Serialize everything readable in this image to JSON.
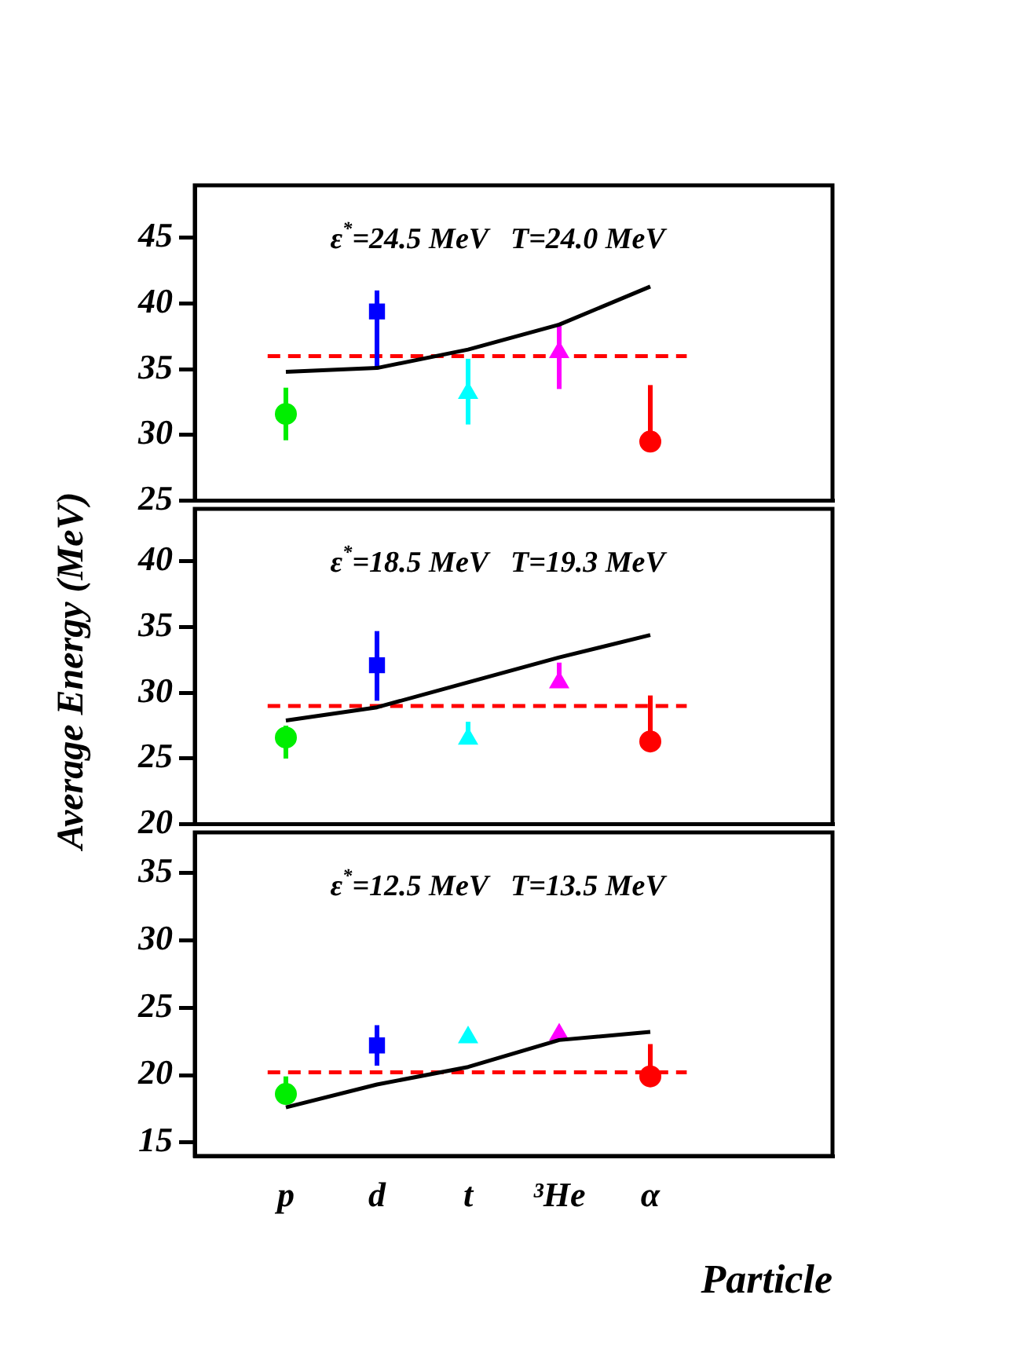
{
  "chart_data": [
    {
      "type": "line",
      "categories": [
        null,
        "p",
        "d",
        "t",
        "³He",
        "α",
        null,
        null
      ],
      "ylim": [
        25,
        49
      ],
      "yticks": [
        25,
        30,
        35,
        40,
        45
      ],
      "tick_labels": "y",
      "grid": false,
      "legend": false,
      "annotations": [
        "ε$^{*}$=24.5 MeV   T=24.0 MeV"
      ],
      "ref_lines": [
        {
          "axis": "y",
          "value": 36.0,
          "color": "#ff0000",
          "line_style": "dashed"
        }
      ],
      "series": [
        {
          "type": "line",
          "color": "#000000",
          "marker": "none",
          "line_style": "solid",
          "values": [
            null,
            34.8,
            35.1,
            36.5,
            38.4,
            41.3,
            null,
            null
          ]
        },
        {
          "type": "scatter",
          "color": "#00ee00",
          "marker": "circle",
          "x": [
            "p"
          ],
          "values": [
            31.6
          ],
          "errors": [
            [
              29.6,
              33.6
            ]
          ]
        },
        {
          "type": "scatter",
          "color": "#0000ff",
          "marker": "square",
          "x": [
            "d"
          ],
          "values": [
            39.4
          ],
          "errors": [
            [
              35.0,
              41.0
            ]
          ]
        },
        {
          "type": "scatter",
          "color": "#00ffff",
          "marker": "triangle",
          "x": [
            "t"
          ],
          "values": [
            33.2
          ],
          "errors": [
            [
              30.8,
              35.8
            ]
          ]
        },
        {
          "type": "scatter",
          "color": "#ff00ff",
          "marker": "triangle",
          "x": [
            "³He"
          ],
          "values": [
            36.3
          ],
          "errors": [
            [
              33.5,
              38.5
            ]
          ]
        },
        {
          "type": "scatter",
          "color": "#ff0000",
          "marker": "circle",
          "x": [
            "α"
          ],
          "values": [
            29.5
          ],
          "errors": [
            [
              29.5,
              33.8
            ]
          ]
        }
      ]
    },
    {
      "type": "line",
      "categories": [
        null,
        "p",
        "d",
        "t",
        "³He",
        "α",
        null,
        null
      ],
      "ylim": [
        20,
        44
      ],
      "yticks": [
        20,
        25,
        30,
        35,
        40
      ],
      "tick_labels": "y",
      "grid": false,
      "legend": false,
      "ylabel": "Average Energy (MeV)",
      "annotations": [
        "ε$^{*}$=18.5 MeV   T=19.3 MeV"
      ],
      "ref_lines": [
        {
          "axis": "y",
          "value": 29.0,
          "color": "#ff0000",
          "line_style": "dashed"
        }
      ],
      "series": [
        {
          "type": "line",
          "color": "#000000",
          "marker": "none",
          "line_style": "solid",
          "values": [
            null,
            27.9,
            28.9,
            30.8,
            32.7,
            34.4,
            null,
            null
          ]
        },
        {
          "type": "scatter",
          "color": "#00ee00",
          "marker": "circle",
          "x": [
            "p"
          ],
          "values": [
            26.6
          ],
          "errors": [
            [
              25.0,
              27.5
            ]
          ]
        },
        {
          "type": "scatter",
          "color": "#0000ff",
          "marker": "square",
          "x": [
            "d"
          ],
          "values": [
            32.1
          ],
          "errors": [
            [
              29.4,
              34.7
            ]
          ]
        },
        {
          "type": "scatter",
          "color": "#00ffff",
          "marker": "triangle",
          "x": [
            "t"
          ],
          "values": [
            26.5
          ],
          "errors": [
            [
              26.5,
              27.8
            ]
          ]
        },
        {
          "type": "scatter",
          "color": "#ff00ff",
          "marker": "triangle",
          "x": [
            "³He"
          ],
          "values": [
            30.8
          ],
          "errors": [
            [
              30.8,
              32.3
            ]
          ]
        },
        {
          "type": "scatter",
          "color": "#ff0000",
          "marker": "circle",
          "x": [
            "α"
          ],
          "values": [
            26.3
          ],
          "errors": [
            [
              26.3,
              29.8
            ]
          ]
        }
      ]
    },
    {
      "type": "line",
      "categories": [
        null,
        "p",
        "d",
        "t",
        "³He",
        "α",
        null,
        null
      ],
      "ylim": [
        14,
        38
      ],
      "yticks": [
        15,
        20,
        25,
        30,
        35
      ],
      "grid": false,
      "legend": false,
      "xlabel": "Particle",
      "annotations": [
        "ε$^{*}$=12.5 MeV   T=13.5 MeV"
      ],
      "ref_lines": [
        {
          "axis": "y",
          "value": 20.2,
          "color": "#ff0000",
          "line_style": "dashed"
        }
      ],
      "series": [
        {
          "type": "line",
          "color": "#000000",
          "marker": "none",
          "line_style": "solid",
          "values": [
            null,
            17.6,
            19.3,
            20.6,
            22.6,
            23.2,
            null,
            null
          ]
        },
        {
          "type": "scatter",
          "color": "#00ee00",
          "marker": "circle",
          "x": [
            "p"
          ],
          "values": [
            18.6
          ],
          "errors": [
            [
              18.6,
              19.9
            ]
          ]
        },
        {
          "type": "scatter",
          "color": "#0000ff",
          "marker": "square",
          "x": [
            "d"
          ],
          "values": [
            22.2
          ],
          "errors": [
            [
              20.7,
              23.7
            ]
          ]
        },
        {
          "type": "scatter",
          "color": "#00ffff",
          "marker": "triangle",
          "x": [
            "t"
          ],
          "values": [
            22.8
          ]
        },
        {
          "type": "scatter",
          "color": "#ff00ff",
          "marker": "triangle",
          "x": [
            "³He"
          ],
          "values": [
            23.0
          ]
        },
        {
          "type": "scatter",
          "color": "#ff0000",
          "marker": "circle",
          "x": [
            "α"
          ],
          "values": [
            19.9
          ],
          "errors": [
            [
              19.9,
              22.3
            ]
          ]
        }
      ]
    }
  ]
}
